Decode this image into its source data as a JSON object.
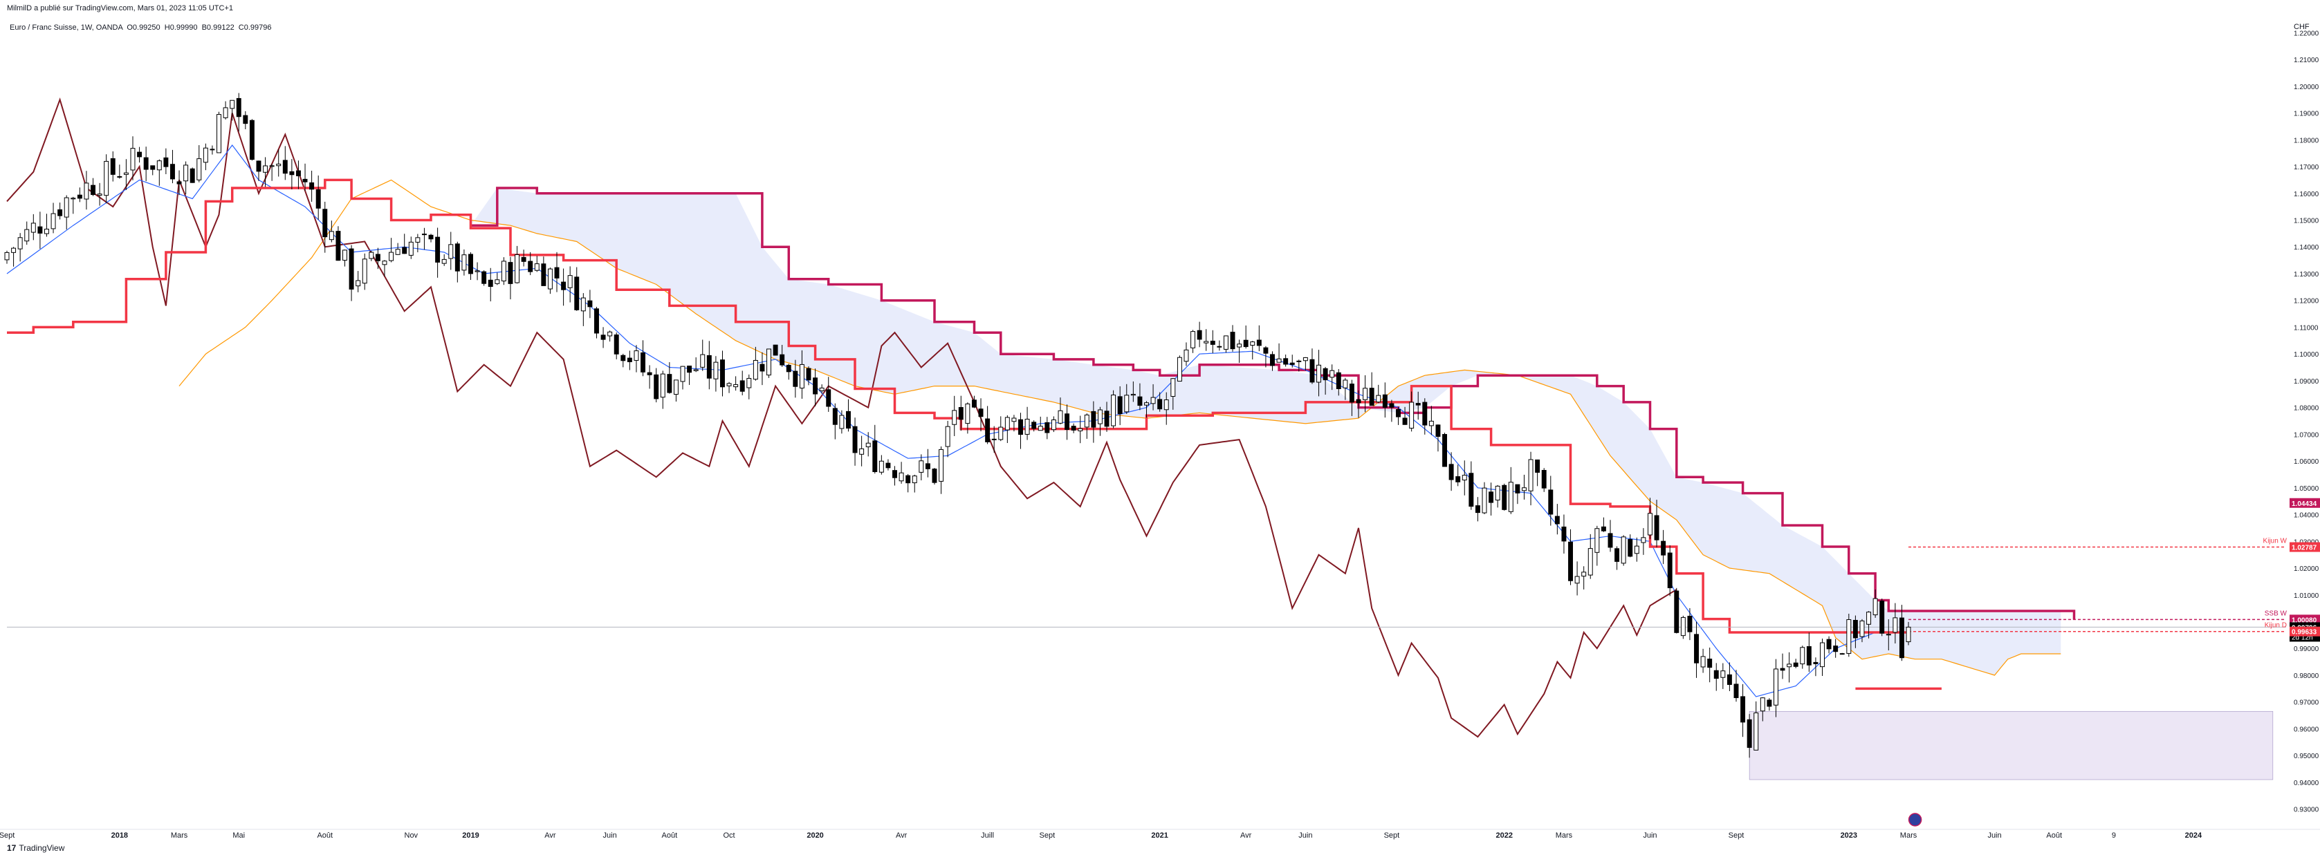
{
  "header": {
    "attribution": "MilmilD a publié sur TradingView.com, Mars 01, 2023 11:05 UTC+1",
    "symbol_line": "Euro / Franc Suisse, 1W, OANDA  O0.99250  H0.99990  B0.99122  C0.99796"
  },
  "footer": {
    "brand_mark": "17",
    "brand": "TradingView"
  },
  "currency": "CHF",
  "colors": {
    "bull": "#ffffff",
    "bear": "#000000",
    "kijun": "#f23645",
    "tenkan": "#2962ff",
    "chikou": "#801922",
    "ssa": "#ff9800",
    "ssb": "#c2185b",
    "cloud": "#e8ecfb",
    "zone": "#ece6f5",
    "gridline": "#b2b5be"
  },
  "chart_data": {
    "type": "candlestick",
    "title": "Euro / Franc Suisse",
    "ylim": [
      0.925,
      1.225
    ],
    "y_ticks": [
      "1.22000",
      "1.21000",
      "1.20000",
      "1.19000",
      "1.18000",
      "1.17000",
      "1.16000",
      "1.15000",
      "1.14000",
      "1.13000",
      "1.12000",
      "1.11000",
      "1.10000",
      "1.09000",
      "1.08000",
      "1.07000",
      "1.06000",
      "1.05000",
      "1.04000",
      "1.03000",
      "1.02000",
      "1.01000",
      "1.00000",
      "0.99000",
      "0.98000",
      "0.97000",
      "0.96000",
      "0.95000",
      "0.94000",
      "0.93000"
    ],
    "x_labels": [
      {
        "t": 0,
        "label": "Sept"
      },
      {
        "t": 17,
        "label": "2018"
      },
      {
        "t": 26,
        "label": "Mars"
      },
      {
        "t": 35,
        "label": "Mai"
      },
      {
        "t": 48,
        "label": "Août"
      },
      {
        "t": 61,
        "label": "Nov"
      },
      {
        "t": 70,
        "label": "2019"
      },
      {
        "t": 82,
        "label": "Avr"
      },
      {
        "t": 91,
        "label": "Juin"
      },
      {
        "t": 100,
        "label": "Août"
      },
      {
        "t": 109,
        "label": "Oct"
      },
      {
        "t": 122,
        "label": "2020"
      },
      {
        "t": 135,
        "label": "Avr"
      },
      {
        "t": 148,
        "label": "Juill"
      },
      {
        "t": 157,
        "label": "Sept"
      },
      {
        "t": 174,
        "label": "2021"
      },
      {
        "t": 187,
        "label": "Avr"
      },
      {
        "t": 196,
        "label": "Juin"
      },
      {
        "t": 209,
        "label": "Sept"
      },
      {
        "t": 226,
        "label": "2022"
      },
      {
        "t": 235,
        "label": "Mars"
      },
      {
        "t": 248,
        "label": "Juin"
      },
      {
        "t": 261,
        "label": "Sept"
      },
      {
        "t": 278,
        "label": "2023"
      },
      {
        "t": 287,
        "label": "Mars"
      },
      {
        "t": 300,
        "label": "Juin"
      },
      {
        "t": 309,
        "label": "Août"
      },
      {
        "t": 318,
        "label": "9"
      },
      {
        "t": 330,
        "label": "2024"
      }
    ],
    "close_keyframes": [
      [
        0,
        1.138
      ],
      [
        10,
        1.16
      ],
      [
        20,
        1.173
      ],
      [
        28,
        1.168
      ],
      [
        34,
        1.195
      ],
      [
        38,
        1.172
      ],
      [
        45,
        1.165
      ],
      [
        52,
        1.128
      ],
      [
        60,
        1.142
      ],
      [
        66,
        1.138
      ],
      [
        72,
        1.125
      ],
      [
        78,
        1.135
      ],
      [
        84,
        1.128
      ],
      [
        92,
        1.105
      ],
      [
        98,
        1.088
      ],
      [
        104,
        1.095
      ],
      [
        110,
        1.09
      ],
      [
        116,
        1.102
      ],
      [
        122,
        1.085
      ],
      [
        128,
        1.065
      ],
      [
        134,
        1.058
      ],
      [
        140,
        1.055
      ],
      [
        143,
        1.078
      ],
      [
        148,
        1.072
      ],
      [
        154,
        1.075
      ],
      [
        162,
        1.072
      ],
      [
        168,
        1.082
      ],
      [
        174,
        1.078
      ],
      [
        180,
        1.108
      ],
      [
        186,
        1.104
      ],
      [
        192,
        1.098
      ],
      [
        198,
        1.093
      ],
      [
        204,
        1.082
      ],
      [
        208,
        1.086
      ],
      [
        214,
        1.073
      ],
      [
        218,
        1.057
      ],
      [
        222,
        1.045
      ],
      [
        226,
        1.046
      ],
      [
        230,
        1.055
      ],
      [
        234,
        1.035
      ],
      [
        237,
        1.012
      ],
      [
        240,
        1.035
      ],
      [
        244,
        1.026
      ],
      [
        248,
        1.038
      ],
      [
        252,
        1.001
      ],
      [
        256,
        0.985
      ],
      [
        260,
        0.973
      ],
      [
        263,
        0.958
      ],
      [
        266,
        0.973
      ],
      [
        270,
        0.987
      ],
      [
        274,
        0.991
      ],
      [
        278,
        0.995
      ],
      [
        282,
        1.003
      ],
      [
        284,
        0.999
      ],
      [
        286,
        0.9922
      ],
      [
        287,
        0.99796
      ]
    ],
    "candle_count": 288,
    "last_bar": {
      "open": 0.9925,
      "high": 0.9999,
      "low": 0.99122,
      "close": 0.99796
    },
    "kijun_keyframes": [
      [
        0,
        1.108
      ],
      [
        4,
        1.11
      ],
      [
        10,
        1.112
      ],
      [
        18,
        1.128
      ],
      [
        24,
        1.138
      ],
      [
        30,
        1.157
      ],
      [
        34,
        1.162
      ],
      [
        48,
        1.165
      ],
      [
        52,
        1.158
      ],
      [
        58,
        1.15
      ],
      [
        64,
        1.152
      ],
      [
        70,
        1.147
      ],
      [
        76,
        1.137
      ],
      [
        84,
        1.135
      ],
      [
        92,
        1.124
      ],
      [
        100,
        1.118
      ],
      [
        110,
        1.112
      ],
      [
        118,
        1.103
      ],
      [
        122,
        1.098
      ],
      [
        128,
        1.087
      ],
      [
        134,
        1.078
      ],
      [
        140,
        1.076
      ],
      [
        144,
        1.072
      ],
      [
        168,
        1.072
      ],
      [
        172,
        1.077
      ],
      [
        182,
        1.078
      ],
      [
        192,
        1.078
      ],
      [
        196,
        1.082
      ],
      [
        206,
        1.082
      ],
      [
        212,
        1.088
      ],
      [
        218,
        1.072
      ],
      [
        224,
        1.066
      ],
      [
        230,
        1.066
      ],
      [
        236,
        1.044
      ],
      [
        242,
        1.043
      ],
      [
        248,
        1.028
      ],
      [
        252,
        1.018
      ],
      [
        256,
        1.001
      ],
      [
        260,
        0.996
      ],
      [
        264,
        0.996
      ],
      [
        268,
        0.996
      ],
      [
        272,
        0.996
      ],
      [
        278,
        0.996
      ],
      [
        282,
        0.996
      ],
      [
        287,
        0.996
      ]
    ],
    "tenkan_keyframes": [
      [
        0,
        1.13
      ],
      [
        10,
        1.148
      ],
      [
        20,
        1.165
      ],
      [
        28,
        1.158
      ],
      [
        34,
        1.178
      ],
      [
        38,
        1.165
      ],
      [
        45,
        1.155
      ],
      [
        52,
        1.138
      ],
      [
        60,
        1.14
      ],
      [
        66,
        1.138
      ],
      [
        72,
        1.13
      ],
      [
        80,
        1.132
      ],
      [
        88,
        1.118
      ],
      [
        94,
        1.104
      ],
      [
        100,
        1.095
      ],
      [
        108,
        1.094
      ],
      [
        116,
        1.098
      ],
      [
        122,
        1.088
      ],
      [
        128,
        1.072
      ],
      [
        136,
        1.061
      ],
      [
        142,
        1.062
      ],
      [
        148,
        1.07
      ],
      [
        156,
        1.074
      ],
      [
        164,
        1.075
      ],
      [
        172,
        1.08
      ],
      [
        180,
        1.1
      ],
      [
        188,
        1.101
      ],
      [
        196,
        1.094
      ],
      [
        204,
        1.085
      ],
      [
        210,
        1.08
      ],
      [
        216,
        1.068
      ],
      [
        222,
        1.05
      ],
      [
        230,
        1.048
      ],
      [
        236,
        1.03
      ],
      [
        242,
        1.032
      ],
      [
        248,
        1.03
      ],
      [
        252,
        1.01
      ],
      [
        258,
        0.99
      ],
      [
        264,
        0.972
      ],
      [
        270,
        0.976
      ],
      [
        276,
        0.99
      ],
      [
        282,
        0.996
      ],
      [
        287,
        0.996
      ]
    ],
    "chikou_keyframes": [
      [
        0,
        1.157
      ],
      [
        4,
        1.168
      ],
      [
        8,
        1.195
      ],
      [
        12,
        1.162
      ],
      [
        16,
        1.155
      ],
      [
        20,
        1.17
      ],
      [
        22,
        1.14
      ],
      [
        24,
        1.118
      ],
      [
        26,
        1.165
      ],
      [
        30,
        1.14
      ],
      [
        32,
        1.152
      ],
      [
        34,
        1.19
      ],
      [
        38,
        1.16
      ],
      [
        42,
        1.182
      ],
      [
        48,
        1.14
      ],
      [
        54,
        1.142
      ],
      [
        60,
        1.116
      ],
      [
        64,
        1.125
      ],
      [
        68,
        1.086
      ],
      [
        72,
        1.096
      ],
      [
        76,
        1.088
      ],
      [
        80,
        1.108
      ],
      [
        84,
        1.098
      ],
      [
        88,
        1.058
      ],
      [
        92,
        1.064
      ],
      [
        98,
        1.054
      ],
      [
        102,
        1.063
      ],
      [
        106,
        1.058
      ],
      [
        108,
        1.075
      ],
      [
        112,
        1.058
      ],
      [
        116,
        1.088
      ],
      [
        120,
        1.074
      ],
      [
        124,
        1.088
      ],
      [
        130,
        1.08
      ],
      [
        132,
        1.103
      ],
      [
        134,
        1.108
      ],
      [
        138,
        1.095
      ],
      [
        142,
        1.104
      ],
      [
        146,
        1.082
      ],
      [
        150,
        1.058
      ],
      [
        154,
        1.046
      ],
      [
        158,
        1.052
      ],
      [
        162,
        1.043
      ],
      [
        166,
        1.067
      ],
      [
        168,
        1.053
      ],
      [
        172,
        1.032
      ],
      [
        176,
        1.052
      ],
      [
        180,
        1.066
      ],
      [
        186,
        1.068
      ],
      [
        190,
        1.043
      ],
      [
        194,
        1.005
      ],
      [
        198,
        1.025
      ],
      [
        202,
        1.018
      ],
      [
        204,
        1.035
      ],
      [
        206,
        1.005
      ],
      [
        210,
        0.98
      ],
      [
        212,
        0.992
      ],
      [
        216,
        0.979
      ],
      [
        218,
        0.964
      ],
      [
        222,
        0.957
      ],
      [
        226,
        0.969
      ],
      [
        228,
        0.958
      ],
      [
        232,
        0.973
      ],
      [
        234,
        0.985
      ],
      [
        236,
        0.979
      ],
      [
        238,
        0.996
      ],
      [
        240,
        0.99
      ],
      [
        244,
        1.006
      ],
      [
        246,
        0.995
      ],
      [
        248,
        1.006
      ],
      [
        252,
        1.012
      ]
    ],
    "ssa_keyframes": [
      [
        26,
        1.088
      ],
      [
        30,
        1.1
      ],
      [
        36,
        1.11
      ],
      [
        40,
        1.12
      ],
      [
        46,
        1.136
      ],
      [
        52,
        1.158
      ],
      [
        58,
        1.165
      ],
      [
        64,
        1.155
      ],
      [
        70,
        1.15
      ],
      [
        76,
        1.148
      ],
      [
        80,
        1.145
      ],
      [
        86,
        1.142
      ],
      [
        92,
        1.132
      ],
      [
        98,
        1.126
      ],
      [
        104,
        1.115
      ],
      [
        110,
        1.105
      ],
      [
        116,
        1.098
      ],
      [
        122,
        1.094
      ],
      [
        128,
        1.088
      ],
      [
        134,
        1.085
      ],
      [
        140,
        1.088
      ],
      [
        146,
        1.088
      ],
      [
        152,
        1.085
      ],
      [
        158,
        1.082
      ],
      [
        164,
        1.078
      ],
      [
        172,
        1.076
      ],
      [
        180,
        1.078
      ],
      [
        188,
        1.076
      ],
      [
        196,
        1.074
      ],
      [
        204,
        1.076
      ],
      [
        210,
        1.088
      ],
      [
        214,
        1.092
      ],
      [
        220,
        1.094
      ],
      [
        228,
        1.092
      ],
      [
        236,
        1.085
      ],
      [
        242,
        1.062
      ],
      [
        248,
        1.045
      ],
      [
        252,
        1.038
      ],
      [
        256,
        1.025
      ],
      [
        260,
        1.02
      ],
      [
        266,
        1.018
      ],
      [
        270,
        1.012
      ],
      [
        274,
        1.006
      ],
      [
        276,
        0.994
      ],
      [
        280,
        0.986
      ],
      [
        284,
        0.988
      ],
      [
        288,
        0.986
      ],
      [
        292,
        0.986
      ],
      [
        296,
        0.983
      ],
      [
        300,
        0.98
      ],
      [
        302,
        0.986
      ],
      [
        304,
        0.988
      ],
      [
        310,
        0.988
      ]
    ],
    "ssb_keyframes": [
      [
        70,
        1.148
      ],
      [
        74,
        1.162
      ],
      [
        80,
        1.16
      ],
      [
        110,
        1.16
      ],
      [
        114,
        1.14
      ],
      [
        118,
        1.128
      ],
      [
        124,
        1.126
      ],
      [
        132,
        1.12
      ],
      [
        140,
        1.112
      ],
      [
        146,
        1.108
      ],
      [
        150,
        1.1
      ],
      [
        158,
        1.098
      ],
      [
        164,
        1.096
      ],
      [
        170,
        1.094
      ],
      [
        174,
        1.092
      ],
      [
        180,
        1.096
      ],
      [
        192,
        1.094
      ],
      [
        198,
        1.092
      ],
      [
        204,
        1.08
      ],
      [
        210,
        1.078
      ],
      [
        214,
        1.08
      ],
      [
        218,
        1.088
      ],
      [
        222,
        1.092
      ],
      [
        236,
        1.092
      ],
      [
        240,
        1.088
      ],
      [
        244,
        1.082
      ],
      [
        248,
        1.072
      ],
      [
        252,
        1.054
      ],
      [
        256,
        1.052
      ],
      [
        262,
        1.048
      ],
      [
        268,
        1.036
      ],
      [
        274,
        1.028
      ],
      [
        278,
        1.018
      ],
      [
        282,
        1.008
      ],
      [
        284,
        1.004
      ],
      [
        310,
        1.004
      ],
      [
        312,
        1.0008
      ]
    ],
    "kijun_label_line": {
      "t_start": 279,
      "t_end": 292,
      "value": 0.975
    },
    "price_labels": [
      {
        "value": 1.04434,
        "text": "1.04434",
        "color": "#c2185b",
        "tag": ""
      },
      {
        "value": 1.02787,
        "text": "1.02787",
        "color": "#f23645",
        "tag": "Kijun W"
      },
      {
        "value": 1.0008,
        "text": "1.00080",
        "color": "#c2185b",
        "tag": "SSB W"
      },
      {
        "value": 0.99796,
        "text": "0.99796",
        "color": "#000000",
        "tag": "2d 12h"
      },
      {
        "value": 0.99633,
        "text": "0.99633",
        "color": "#f23645",
        "tag": "Kijun D"
      }
    ],
    "hlines": [
      {
        "value": 1.02787,
        "from_t": 287,
        "color": "#f23645",
        "dashed": true
      },
      {
        "value": 1.0008,
        "from_t": 287,
        "color": "#c2185b",
        "dashed": true
      },
      {
        "value": 0.99633,
        "from_t": 287,
        "color": "#f23645",
        "dashed": true
      },
      {
        "value": 0.99796,
        "from_t": 0,
        "color": "#b2b5be",
        "dashed": false
      }
    ],
    "zone_box": {
      "t_start": 263,
      "t_end": 342,
      "y_top": 0.9665,
      "y_bottom": 0.941
    },
    "cursor_marker_t": 288
  }
}
